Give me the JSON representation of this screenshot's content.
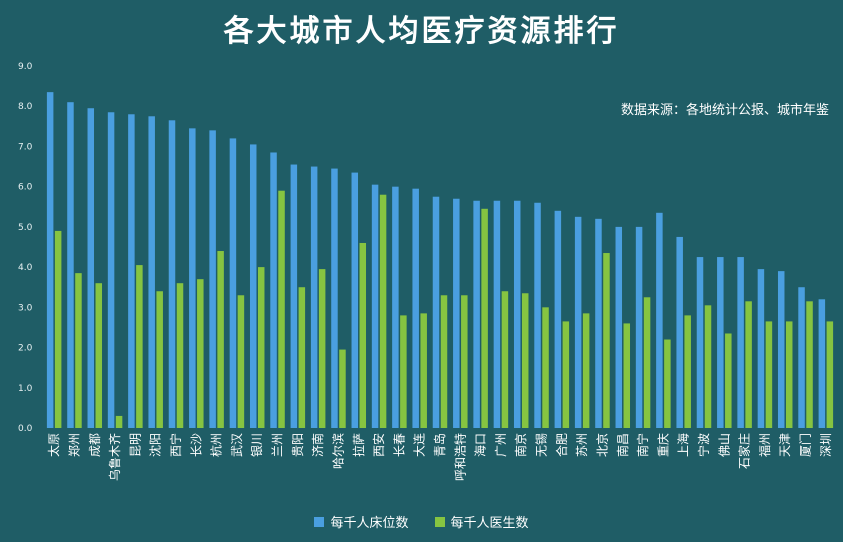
{
  "chart_data": {
    "type": "bar",
    "title": "各大城市人均医疗资源排行",
    "source_note": "数据来源：各地统计公报、城市年鉴",
    "ylim": [
      0,
      9
    ],
    "yticks": [
      "0.0",
      "1.0",
      "2.0",
      "3.0",
      "4.0",
      "5.0",
      "6.0",
      "7.0",
      "8.0",
      "9.0"
    ],
    "legend_position": "bottom-center",
    "grid": false,
    "categories": [
      "太原",
      "郑州",
      "成都",
      "乌鲁木齐",
      "昆明",
      "沈阳",
      "西宁",
      "长沙",
      "杭州",
      "武汉",
      "银川",
      "兰州",
      "贵阳",
      "济南",
      "哈尔滨",
      "拉萨",
      "西安",
      "长春",
      "大连",
      "青岛",
      "呼和浩特",
      "海口",
      "广州",
      "南京",
      "无锡",
      "合肥",
      "苏州",
      "北京",
      "南昌",
      "南宁",
      "重庆",
      "上海",
      "宁波",
      "佛山",
      "石家庄",
      "福州",
      "天津",
      "厦门",
      "深圳"
    ],
    "series": [
      {
        "name": "每千人床位数",
        "color": "#4a9fe0",
        "values": [
          8.35,
          8.1,
          7.95,
          7.85,
          7.8,
          7.75,
          7.65,
          7.45,
          7.4,
          7.2,
          7.05,
          6.85,
          6.55,
          6.5,
          6.45,
          6.35,
          6.05,
          6.0,
          5.95,
          5.75,
          5.7,
          5.65,
          5.65,
          5.65,
          5.6,
          5.4,
          5.25,
          5.2,
          5.0,
          5.0,
          5.35,
          4.75,
          4.25,
          4.25,
          4.25,
          3.95,
          3.9,
          3.5,
          3.2
        ]
      },
      {
        "name": "每千人医生数",
        "color": "#86c441",
        "values": [
          4.9,
          3.85,
          3.6,
          0.3,
          4.05,
          3.4,
          3.6,
          3.7,
          4.4,
          3.3,
          4.0,
          5.9,
          3.5,
          3.95,
          1.95,
          4.6,
          5.8,
          2.8,
          2.85,
          3.3,
          3.3,
          5.45,
          3.4,
          3.35,
          3.0,
          2.65,
          2.85,
          4.35,
          2.6,
          3.25,
          2.2,
          2.8,
          3.05,
          2.35,
          3.15,
          2.65,
          2.65,
          3.15,
          2.65
        ]
      }
    ]
  }
}
